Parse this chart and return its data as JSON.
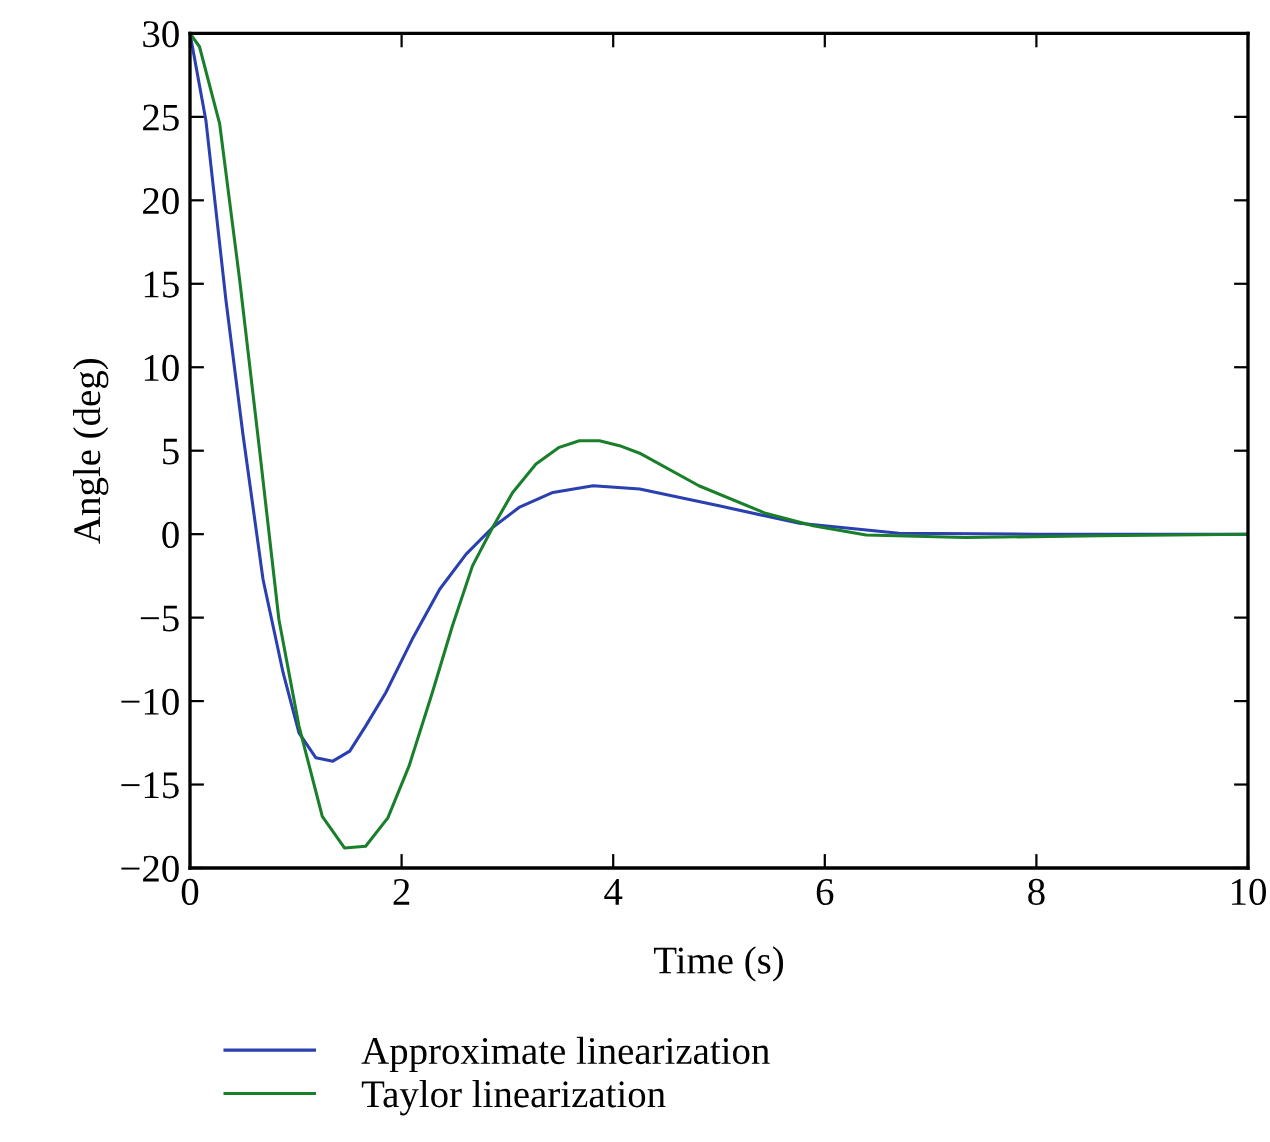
{
  "chart_data": {
    "type": "line",
    "xlabel": "Time (s)",
    "ylabel": "Angle (deg)",
    "xlim": [
      0,
      10
    ],
    "ylim": [
      -20,
      30
    ],
    "xticks": [
      0,
      2,
      4,
      6,
      8,
      10
    ],
    "yticks": [
      -20,
      -15,
      -10,
      -5,
      0,
      5,
      10,
      15,
      20,
      25,
      30
    ],
    "grid": false,
    "legend": "bottom",
    "marker": "none",
    "line_style": "solid",
    "series": [
      {
        "name": "Approximate linearization",
        "color": "#2a3fb0",
        "x": [
          0,
          0.15,
          0.34,
          0.5,
          0.69,
          0.88,
          1.03,
          1.19,
          1.35,
          1.51,
          1.66,
          1.85,
          2.1,
          2.36,
          2.61,
          2.86,
          3.11,
          3.43,
          3.81,
          4.25,
          5.0,
          5.76,
          6.7,
          8.0,
          10
        ],
        "values": [
          30,
          24.8,
          14,
          6,
          -2.7,
          -8.3,
          -11.9,
          -13.4,
          -13.6,
          -13.0,
          -11.5,
          -9.5,
          -6.3,
          -3.3,
          -1.2,
          0.4,
          1.6,
          2.5,
          2.9,
          2.7,
          1.7,
          0.65,
          0.05,
          0,
          0
        ]
      },
      {
        "name": "Taylor linearization",
        "color": "#1a7f2a",
        "x": [
          0,
          0.09,
          0.28,
          0.47,
          0.66,
          0.84,
          1.03,
          1.25,
          1.46,
          1.66,
          1.87,
          2.07,
          2.29,
          2.48,
          2.67,
          2.86,
          3.05,
          3.27,
          3.49,
          3.68,
          3.87,
          4.06,
          4.25,
          4.81,
          5.44,
          5.89,
          6.39,
          7.33,
          8.6,
          10
        ],
        "values": [
          30,
          29.2,
          24.6,
          15.2,
          4.9,
          -5.1,
          -11.5,
          -16.9,
          -18.8,
          -18.7,
          -17.0,
          -13.9,
          -9.5,
          -5.5,
          -1.9,
          0.4,
          2.5,
          4.2,
          5.2,
          5.6,
          5.6,
          5.3,
          4.85,
          2.9,
          1.25,
          0.5,
          -0.05,
          -0.2,
          -0.1,
          0
        ]
      }
    ]
  }
}
